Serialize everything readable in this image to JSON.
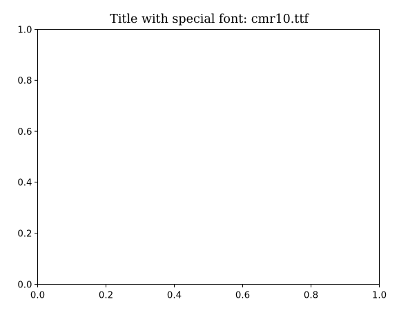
{
  "chart_data": {
    "type": "line",
    "title": "Title with special font: cmr10.ttf",
    "xlabel": "",
    "ylabel": "",
    "xlim": [
      0.0,
      1.0
    ],
    "ylim": [
      0.0,
      1.0
    ],
    "xticks": [
      0.0,
      0.2,
      0.4,
      0.6,
      0.8,
      1.0
    ],
    "yticks": [
      0.0,
      0.2,
      0.4,
      0.6,
      0.8,
      1.0
    ],
    "xtick_labels": [
      "0.0",
      "0.2",
      "0.4",
      "0.6",
      "0.8",
      "1.0"
    ],
    "ytick_labels": [
      "0.0",
      "0.2",
      "0.4",
      "0.6",
      "0.8",
      "1.0"
    ],
    "grid": false,
    "series": [],
    "colors": {
      "axes": "#000000",
      "background": "#ffffff"
    }
  }
}
